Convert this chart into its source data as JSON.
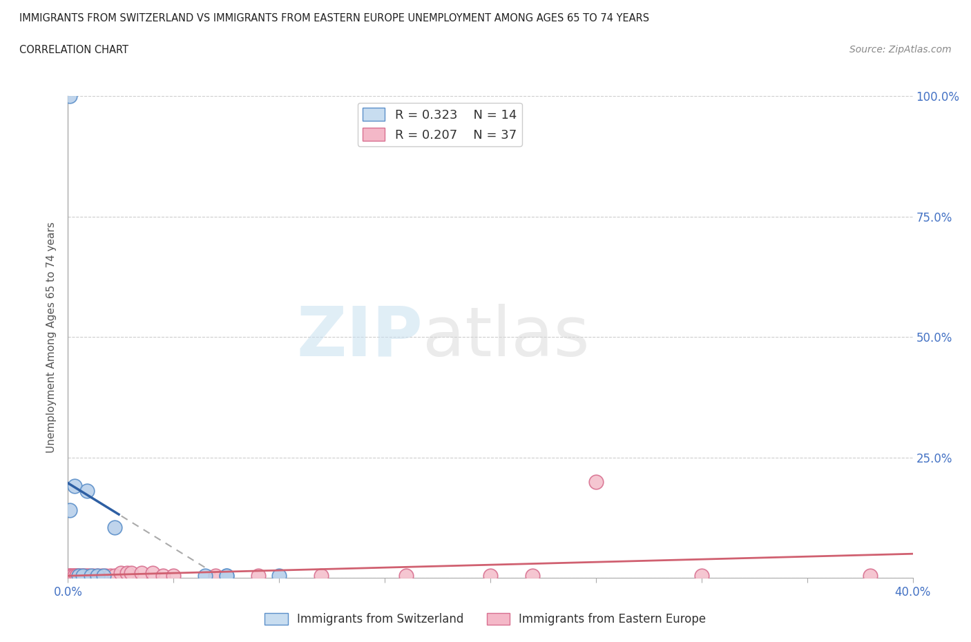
{
  "title_line1": "IMMIGRANTS FROM SWITZERLAND VS IMMIGRANTS FROM EASTERN EUROPE UNEMPLOYMENT AMONG AGES 65 TO 74 YEARS",
  "title_line2": "CORRELATION CHART",
  "source": "Source: ZipAtlas.com",
  "ylabel": "Unemployment Among Ages 65 to 74 years",
  "xlim": [
    0.0,
    0.4
  ],
  "ylim": [
    0.0,
    1.0
  ],
  "xticks": [
    0.0,
    0.05,
    0.1,
    0.15,
    0.2,
    0.25,
    0.3,
    0.35,
    0.4
  ],
  "yticks": [
    0.0,
    0.25,
    0.5,
    0.75,
    1.0
  ],
  "switzerland_x": [
    0.001,
    0.001,
    0.003,
    0.005,
    0.007,
    0.009,
    0.011,
    0.014,
    0.017,
    0.022,
    0.065,
    0.075,
    0.075,
    0.1
  ],
  "switzerland_y": [
    1.0,
    0.14,
    0.19,
    0.005,
    0.005,
    0.18,
    0.005,
    0.005,
    0.005,
    0.105,
    0.005,
    0.005,
    0.005,
    0.005
  ],
  "eastern_europe_x": [
    0.001,
    0.001,
    0.001,
    0.002,
    0.002,
    0.003,
    0.003,
    0.004,
    0.004,
    0.005,
    0.006,
    0.007,
    0.008,
    0.009,
    0.01,
    0.012,
    0.014,
    0.016,
    0.018,
    0.02,
    0.022,
    0.025,
    0.028,
    0.03,
    0.035,
    0.04,
    0.045,
    0.05,
    0.07,
    0.09,
    0.12,
    0.16,
    0.2,
    0.22,
    0.25,
    0.3,
    0.38
  ],
  "eastern_europe_y": [
    0.005,
    0.005,
    0.005,
    0.005,
    0.005,
    0.005,
    0.005,
    0.005,
    0.005,
    0.005,
    0.005,
    0.005,
    0.005,
    0.005,
    0.005,
    0.005,
    0.005,
    0.005,
    0.005,
    0.005,
    0.005,
    0.01,
    0.01,
    0.01,
    0.01,
    0.01,
    0.005,
    0.005,
    0.005,
    0.005,
    0.005,
    0.005,
    0.005,
    0.005,
    0.2,
    0.005,
    0.005
  ],
  "switzerland_color": "#b8d0ea",
  "eastern_europe_color": "#f4c0cc",
  "switzerland_edge_color": "#5b8fc9",
  "eastern_europe_edge_color": "#d87090",
  "trend_line_color_swiss": "#2e5fa3",
  "trend_line_color_eastern": "#d06070",
  "R_swiss": 0.323,
  "N_swiss": 14,
  "R_eastern": 0.207,
  "N_eastern": 37,
  "dot_size": 220,
  "background_color": "#ffffff",
  "grid_color": "#cccccc",
  "legend_box_color": "#c8ddf0",
  "legend_pink_color": "#f4b8c8"
}
